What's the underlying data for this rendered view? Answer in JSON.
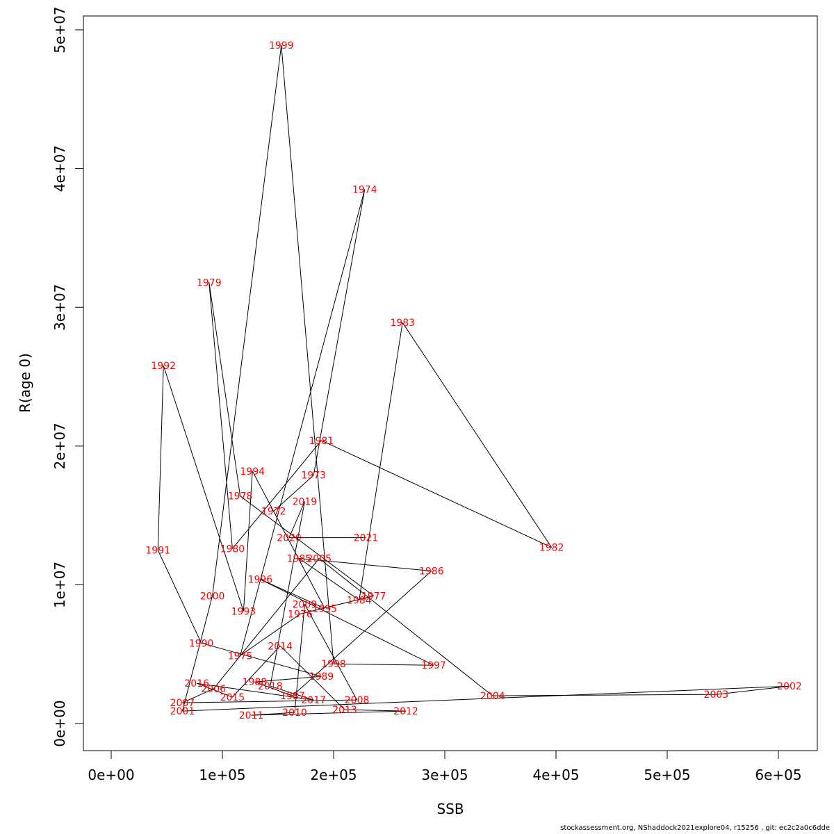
{
  "chart_data": {
    "type": "line",
    "xlabel": "SSB",
    "ylabel": "R(age 0)",
    "xlim": [
      -25000,
      635000
    ],
    "ylim": [
      -1950000,
      51000000
    ],
    "x_ticks": [
      0,
      100000,
      200000,
      300000,
      400000,
      500000,
      600000
    ],
    "x_tick_labels": [
      "0e+00",
      "1e+05",
      "2e+05",
      "3e+05",
      "4e+05",
      "5e+05",
      "6e+05"
    ],
    "y_ticks": [
      0,
      10000000,
      20000000,
      30000000,
      40000000,
      50000000
    ],
    "y_tick_labels": [
      "0e+00",
      "1e+07",
      "2e+07",
      "3e+07",
      "4e+07",
      "5e+07"
    ],
    "line_color": "#000000",
    "label_color": "#ff0000",
    "points": [
      {
        "label": "1972",
        "x": 146000,
        "y": 15300000
      },
      {
        "label": "1973",
        "x": 182000,
        "y": 17900000
      },
      {
        "label": "1974",
        "x": 228000,
        "y": 38500000
      },
      {
        "label": "1975",
        "x": 116000,
        "y": 4900000
      },
      {
        "label": "1976",
        "x": 170000,
        "y": 7900000
      },
      {
        "label": "1977",
        "x": 236000,
        "y": 9200000
      },
      {
        "label": "1978",
        "x": 116000,
        "y": 16400000
      },
      {
        "label": "1979",
        "x": 88000,
        "y": 31800000
      },
      {
        "label": "1980",
        "x": 109000,
        "y": 12600000
      },
      {
        "label": "1981",
        "x": 189000,
        "y": 20400000
      },
      {
        "label": "1982",
        "x": 396000,
        "y": 12700000
      },
      {
        "label": "1983",
        "x": 262000,
        "y": 28900000
      },
      {
        "label": "1984",
        "x": 223000,
        "y": 8900000
      },
      {
        "label": "1985",
        "x": 169000,
        "y": 11900000
      },
      {
        "label": "1986",
        "x": 288000,
        "y": 11000000
      },
      {
        "label": "1987",
        "x": 163000,
        "y": 2000000
      },
      {
        "label": "1988",
        "x": 129000,
        "y": 3000000
      },
      {
        "label": "1989",
        "x": 189000,
        "y": 3400000
      },
      {
        "label": "1990",
        "x": 81000,
        "y": 5800000
      },
      {
        "label": "1991",
        "x": 42000,
        "y": 12500000
      },
      {
        "label": "1992",
        "x": 47000,
        "y": 25800000
      },
      {
        "label": "1993",
        "x": 119000,
        "y": 8100000
      },
      {
        "label": "1994",
        "x": 127000,
        "y": 18200000
      },
      {
        "label": "1995",
        "x": 192000,
        "y": 8300000
      },
      {
        "label": "1996",
        "x": 134000,
        "y": 10400000
      },
      {
        "label": "1997",
        "x": 290000,
        "y": 4200000
      },
      {
        "label": "1998",
        "x": 200000,
        "y": 4300000
      },
      {
        "label": "1999",
        "x": 153000,
        "y": 48900000
      },
      {
        "label": "2000",
        "x": 91000,
        "y": 9200000
      },
      {
        "label": "2001",
        "x": 64000,
        "y": 900000
      },
      {
        "label": "2002",
        "x": 610000,
        "y": 2700000
      },
      {
        "label": "2003",
        "x": 544000,
        "y": 2100000
      },
      {
        "label": "2004",
        "x": 343000,
        "y": 2000000
      },
      {
        "label": "2005",
        "x": 187000,
        "y": 11900000
      },
      {
        "label": "2006",
        "x": 92000,
        "y": 2500000
      },
      {
        "label": "2007",
        "x": 64000,
        "y": 1500000
      },
      {
        "label": "2008",
        "x": 221000,
        "y": 1700000
      },
      {
        "label": "2009",
        "x": 174000,
        "y": 8600000
      },
      {
        "label": "2010",
        "x": 165000,
        "y": 800000
      },
      {
        "label": "2011",
        "x": 126000,
        "y": 600000
      },
      {
        "label": "2012",
        "x": 265000,
        "y": 900000
      },
      {
        "label": "2013",
        "x": 210000,
        "y": 1000000
      },
      {
        "label": "2014",
        "x": 152000,
        "y": 5600000
      },
      {
        "label": "2015",
        "x": 109000,
        "y": 1900000
      },
      {
        "label": "2016",
        "x": 77000,
        "y": 2900000
      },
      {
        "label": "2017",
        "x": 182000,
        "y": 1700000
      },
      {
        "label": "2018",
        "x": 143000,
        "y": 2700000
      },
      {
        "label": "2019",
        "x": 174000,
        "y": 16000000
      },
      {
        "label": "2020",
        "x": 160000,
        "y": 13400000
      },
      {
        "label": "2021",
        "x": 229000,
        "y": 13400000
      }
    ]
  },
  "footer": "stockassessment.org, NShaddock2021explore04, r15256 , git: ec2c2a0c6dde"
}
